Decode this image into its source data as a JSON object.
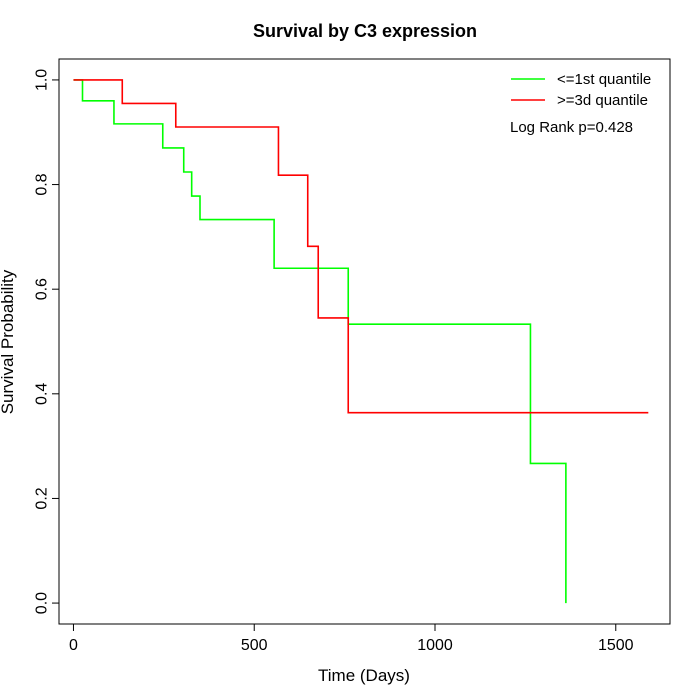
{
  "chart_data": {
    "type": "line",
    "step": true,
    "title": "Survival by C3 expression",
    "xlabel": "Time (Days)",
    "ylabel": "Survival Probability",
    "xlim": [
      -40,
      1650
    ],
    "ylim": [
      -0.04,
      1.04
    ],
    "xticks": [
      0,
      500,
      1000,
      1500
    ],
    "yticks": [
      0.0,
      0.2,
      0.4,
      0.6,
      0.8,
      1.0
    ],
    "xtick_labels": [
      "0",
      "500",
      "1000",
      "1500"
    ],
    "ytick_labels": [
      "0.0",
      "0.2",
      "0.4",
      "0.6",
      "0.8",
      "1.0"
    ],
    "grid": false,
    "legend_position": "top-right",
    "annotation": "Log Rank p=0.428",
    "series": [
      {
        "name": "<=1st quantile",
        "color": "#00ff00",
        "x": [
          0,
          25,
          112,
          247,
          305,
          327,
          350,
          555,
          760,
          1264,
          1362,
          1362
        ],
        "y": [
          1.0,
          0.96,
          0.916,
          0.87,
          0.824,
          0.778,
          0.733,
          0.64,
          0.533,
          0.267,
          0.267,
          0.0
        ]
      },
      {
        "name": ">=3d quantile",
        "color": "#ff0000",
        "x": [
          0,
          135,
          283,
          567,
          648,
          677,
          760,
          1590
        ],
        "y": [
          1.0,
          0.955,
          0.91,
          0.818,
          0.682,
          0.545,
          0.364,
          0.364
        ]
      }
    ]
  }
}
